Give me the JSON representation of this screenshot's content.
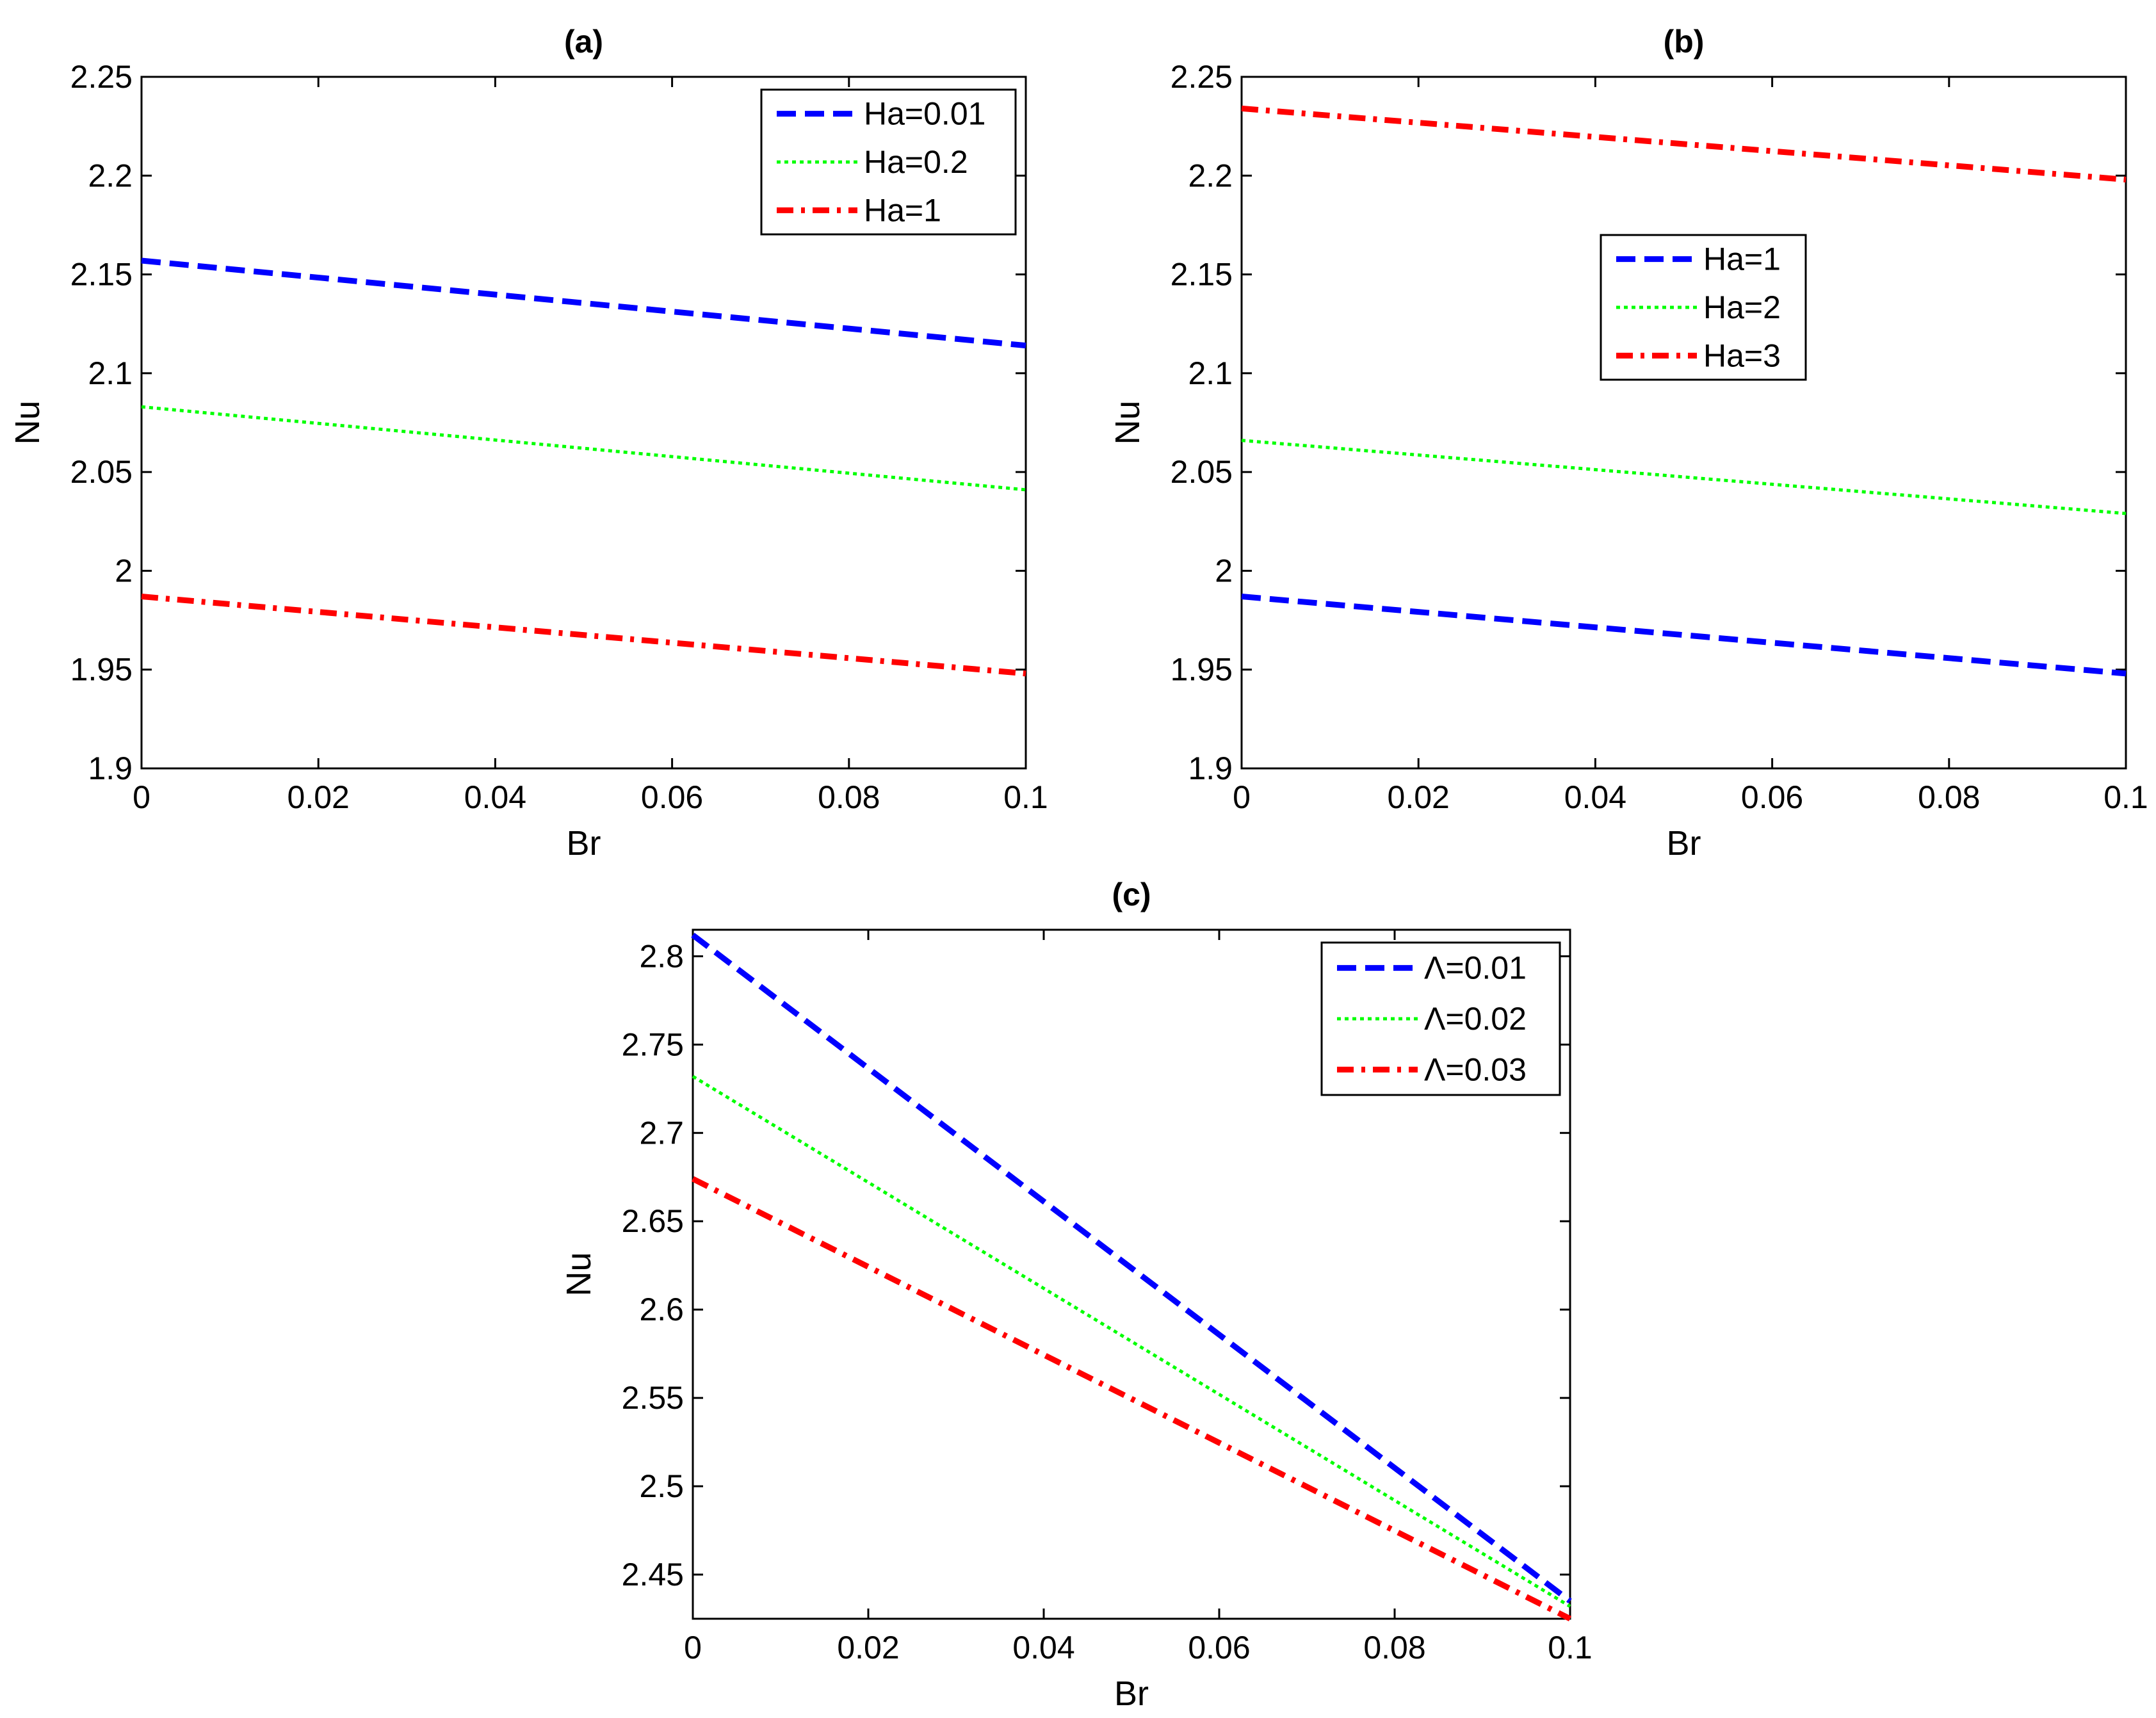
{
  "chart_data": [
    {
      "type": "line",
      "title": "(a)",
      "xlabel": "Br",
      "ylabel": "Nu",
      "xlim": [
        0,
        0.1
      ],
      "ylim": [
        1.9,
        2.25
      ],
      "xticks": [
        0,
        0.02,
        0.04,
        0.06,
        0.08,
        0.1
      ],
      "yticks": [
        1.9,
        1.95,
        2,
        2.05,
        2.1,
        2.15,
        2.2,
        2.25
      ],
      "xtick_labels": [
        "0",
        "0.02",
        "0.04",
        "0.06",
        "0.08",
        "0.1"
      ],
      "ytick_labels": [
        "1.9",
        "1.95",
        "2",
        "2.05",
        "2.1",
        "2.15",
        "2.2",
        "2.25"
      ],
      "legend_position": "top-right",
      "x": [
        0,
        0.1
      ],
      "series": [
        {
          "name": "Ha=0.01",
          "values": [
            2.157,
            2.114
          ],
          "color": "#0000ff",
          "style": "dashed"
        },
        {
          "name": "Ha=0.2",
          "values": [
            2.083,
            2.041
          ],
          "color": "#00ff00",
          "style": "dotted"
        },
        {
          "name": "Ha=1",
          "values": [
            1.987,
            1.948
          ],
          "color": "#ff0000",
          "style": "dashdot"
        }
      ]
    },
    {
      "type": "line",
      "title": "(b)",
      "xlabel": "Br",
      "ylabel": "Nu",
      "xlim": [
        0,
        0.1
      ],
      "ylim": [
        1.9,
        2.25
      ],
      "xticks": [
        0,
        0.02,
        0.04,
        0.06,
        0.08,
        0.1
      ],
      "yticks": [
        1.9,
        1.95,
        2,
        2.05,
        2.1,
        2.15,
        2.2,
        2.25
      ],
      "xtick_labels": [
        "0",
        "0.02",
        "0.04",
        "0.06",
        "0.08",
        "0.1"
      ],
      "ytick_labels": [
        "1.9",
        "1.95",
        "2",
        "2.05",
        "2.1",
        "2.15",
        "2.2",
        "2.25"
      ],
      "legend_position": "center",
      "x": [
        0,
        0.1
      ],
      "series": [
        {
          "name": "Ha=1",
          "values": [
            1.987,
            1.948
          ],
          "color": "#0000ff",
          "style": "dashed"
        },
        {
          "name": "Ha=2",
          "values": [
            2.066,
            2.029
          ],
          "color": "#00ff00",
          "style": "dotted"
        },
        {
          "name": "Ha=3",
          "values": [
            2.234,
            2.198
          ],
          "color": "#ff0000",
          "style": "dashdot"
        }
      ]
    },
    {
      "type": "line",
      "title": "(c)",
      "xlabel": "Br",
      "ylabel": "Nu",
      "xlim": [
        0,
        0.1
      ],
      "ylim": [
        2.425,
        2.815
      ],
      "xticks": [
        0,
        0.02,
        0.04,
        0.06,
        0.08,
        0.1
      ],
      "yticks": [
        2.45,
        2.5,
        2.55,
        2.6,
        2.65,
        2.7,
        2.75,
        2.8
      ],
      "xtick_labels": [
        "0",
        "0.02",
        "0.04",
        "0.06",
        "0.08",
        "0.1"
      ],
      "ytick_labels": [
        "2.45",
        "2.5",
        "2.55",
        "2.6",
        "2.65",
        "2.7",
        "2.75",
        "2.8"
      ],
      "legend_position": "top-right",
      "x": [
        0,
        0.1
      ],
      "series": [
        {
          "name": "Λ=0.01",
          "values": [
            2.812,
            2.435
          ],
          "color": "#0000ff",
          "style": "dashed"
        },
        {
          "name": "Λ=0.02",
          "values": [
            2.732,
            2.432
          ],
          "color": "#00ff00",
          "style": "dotted"
        },
        {
          "name": "Λ=0.03",
          "values": [
            2.674,
            2.425
          ],
          "color": "#ff0000",
          "style": "dashdot"
        }
      ]
    }
  ]
}
